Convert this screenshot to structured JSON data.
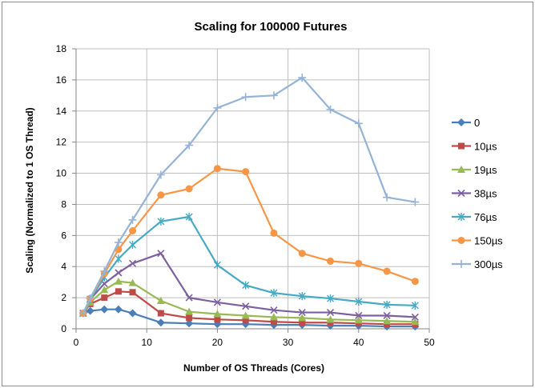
{
  "chart_data": {
    "type": "line",
    "title": "Scaling for 100000 Futures",
    "xlabel": "Number of OS Threads (Cores)",
    "ylabel": "Scaling (Normalized to 1 OS Thread)",
    "xlim": [
      0,
      50
    ],
    "ylim": [
      0,
      18
    ],
    "xticks": [
      0,
      10,
      20,
      30,
      40,
      50
    ],
    "yticks": [
      0,
      2,
      4,
      6,
      8,
      10,
      12,
      14,
      16,
      18
    ],
    "grid": true,
    "legend_position": "right",
    "x": [
      1,
      2,
      4,
      6,
      8,
      12,
      16,
      20,
      24,
      28,
      32,
      36,
      40,
      44,
      48
    ],
    "series": [
      {
        "name": "0",
        "color": "#4a7ebb",
        "marker": "diamond",
        "values": [
          1.0,
          1.15,
          1.25,
          1.25,
          1.0,
          0.4,
          0.35,
          0.3,
          0.3,
          0.25,
          0.25,
          0.2,
          0.2,
          0.15,
          0.15
        ]
      },
      {
        "name": "10µs",
        "color": "#be4b48",
        "marker": "square",
        "values": [
          1.0,
          1.6,
          2.0,
          2.4,
          2.35,
          1.0,
          0.7,
          0.6,
          0.55,
          0.45,
          0.4,
          0.4,
          0.35,
          0.3,
          0.3
        ]
      },
      {
        "name": "19µs",
        "color": "#98b954",
        "marker": "triangle",
        "values": [
          1.0,
          1.7,
          2.5,
          3.05,
          2.95,
          1.8,
          1.1,
          0.95,
          0.85,
          0.75,
          0.7,
          0.6,
          0.55,
          0.5,
          0.45
        ]
      },
      {
        "name": "38µs",
        "color": "#7d60a0",
        "marker": "x",
        "values": [
          1.0,
          1.9,
          2.9,
          3.6,
          4.2,
          4.85,
          2.0,
          1.7,
          1.45,
          1.2,
          1.05,
          1.05,
          0.85,
          0.85,
          0.75
        ]
      },
      {
        "name": "76µs",
        "color": "#46aac5",
        "marker": "star",
        "values": [
          1.0,
          1.9,
          3.3,
          4.5,
          5.4,
          6.9,
          7.2,
          4.1,
          2.8,
          2.3,
          2.1,
          1.95,
          1.75,
          1.55,
          1.5
        ]
      },
      {
        "name": "150µs",
        "color": "#f79646",
        "marker": "circle",
        "values": [
          1.0,
          1.95,
          3.55,
          5.1,
          6.3,
          8.6,
          9.0,
          10.3,
          10.1,
          6.15,
          4.85,
          4.35,
          4.2,
          3.7,
          3.05
        ]
      },
      {
        "name": "300µs",
        "color": "#95b3d7",
        "marker": "plus",
        "values": [
          1.0,
          1.95,
          3.7,
          5.55,
          7.0,
          9.9,
          11.8,
          14.2,
          14.9,
          15.0,
          16.15,
          14.1,
          13.2,
          8.45,
          8.15
        ]
      }
    ]
  }
}
